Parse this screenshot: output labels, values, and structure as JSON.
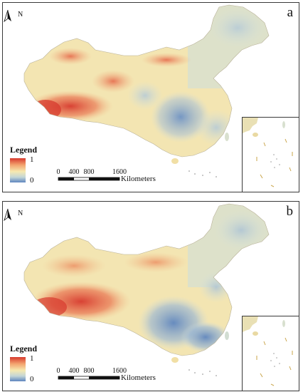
{
  "maps": [
    {
      "panel_label": "a",
      "north_label": "N",
      "legend": {
        "title": "Legend",
        "max_label": "1",
        "min_label": "0"
      },
      "scale_bar": {
        "ticks": [
          "0",
          "400",
          "800",
          "1600"
        ],
        "unit": "Kilometers"
      },
      "pattern": "high values in southwest (Tibetan Plateau) and central north; low values in Sichuan basin and southeast"
    },
    {
      "panel_label": "b",
      "north_label": "N",
      "legend": {
        "title": "Legend",
        "max_label": "1",
        "min_label": "0"
      },
      "scale_bar": {
        "ticks": [
          "0",
          "400",
          "800",
          "1600"
        ],
        "unit": "Kilometers"
      },
      "pattern": "high values across Tibetan Plateau; low values concentrated in Sichuan basin and south China"
    }
  ],
  "colors": {
    "high": "#d7392d",
    "mid": "#f6e9b0",
    "low": "#5f86bf",
    "frame": "#3a3a3a"
  }
}
